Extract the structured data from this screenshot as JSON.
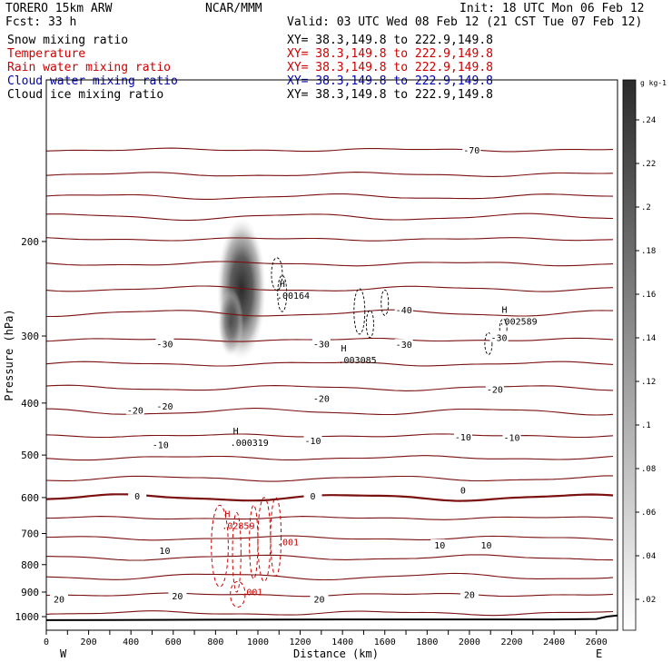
{
  "header": {
    "model": "TORERO  15km ARW",
    "org": "NCAR/MMM",
    "init": "Init: 18 UTC Mon 06 Feb 12",
    "fcst": "Fcst:   33 h",
    "valid": "Valid: 03 UTC Wed 08 Feb 12 (21 CST Tue 07 Feb 12)"
  },
  "fields": [
    {
      "label": "Snow mixing ratio",
      "xy": "XY=  38.3,149.8 to 222.9,149.8",
      "color": "#000000"
    },
    {
      "label": "Temperature",
      "xy": "XY=  38.3,149.8 to 222.9,149.8",
      "color": "#cc0000"
    },
    {
      "label": "Rain water mixing ratio",
      "xy": "XY=  38.3,149.8 to 222.9,149.8",
      "color": "#cc0000"
    },
    {
      "label": "Cloud water mixing ratio",
      "xy": "XY=  38.3,149.8 to 222.9,149.8",
      "color": "#0000aa"
    },
    {
      "label": "Cloud ice mixing ratio",
      "xy": "XY=  38.3,149.8 to 222.9,149.8",
      "color": "#000000"
    }
  ],
  "colors": {
    "temperature": "#7b1010",
    "freezing": "#7b1010",
    "rain": "#cc0000",
    "ice": "#000000",
    "terrain": "#000000"
  },
  "chart_data": {
    "type": "line",
    "xlabel": "Distance (km)",
    "ylabel": "Pressure (hPa)",
    "xlim": [
      0,
      2700
    ],
    "ylim": [
      1060,
      100
    ],
    "y_scale": "log",
    "x_ticks": [
      0,
      100,
      200,
      300,
      400,
      500,
      600,
      700,
      800,
      900,
      1000,
      1100,
      1200,
      1300,
      1400,
      1500,
      1600,
      1700,
      1800,
      1900,
      2000,
      2100,
      2200,
      2300,
      2400,
      2500,
      2600
    ],
    "x_tick_labels": [
      "0",
      "",
      "200",
      "",
      "400",
      "",
      "600",
      "",
      "800",
      "",
      "1000",
      "",
      "1200",
      "",
      "1400",
      "",
      "1600",
      "",
      "1800",
      "",
      "2000",
      "",
      "2200",
      "",
      "2400",
      "",
      "2600"
    ],
    "y_ticks": [
      200,
      300,
      400,
      500,
      600,
      700,
      800,
      900,
      1000
    ],
    "x_end_labels": {
      "left": "W",
      "right": "E"
    },
    "isotherm_labels": [
      {
        "text": "-70",
        "x": 2010,
        "p": 135
      },
      {
        "text": "-40",
        "x": 1690,
        "p": 268
      },
      {
        "text": "-30",
        "x": 560,
        "p": 310
      },
      {
        "text": "-30",
        "x": 1300,
        "p": 310
      },
      {
        "text": "-30",
        "x": 1690,
        "p": 311
      },
      {
        "text": "-30",
        "x": 2140,
        "p": 302
      },
      {
        "text": "-20",
        "x": 420,
        "p": 412
      },
      {
        "text": "-20",
        "x": 560,
        "p": 405
      },
      {
        "text": "-20",
        "x": 1300,
        "p": 392
      },
      {
        "text": "-20",
        "x": 2120,
        "p": 377
      },
      {
        "text": "-10",
        "x": 540,
        "p": 478
      },
      {
        "text": "-10",
        "x": 1260,
        "p": 470
      },
      {
        "text": "-10",
        "x": 1970,
        "p": 462
      },
      {
        "text": "-10",
        "x": 2200,
        "p": 463
      },
      {
        "text": "0",
        "x": 430,
        "p": 595
      },
      {
        "text": "0",
        "x": 1260,
        "p": 595
      },
      {
        "text": "0",
        "x": 1970,
        "p": 581
      },
      {
        "text": "10",
        "x": 560,
        "p": 753
      },
      {
        "text": "10",
        "x": 1860,
        "p": 735
      },
      {
        "text": "10",
        "x": 2080,
        "p": 735
      },
      {
        "text": "20",
        "x": 60,
        "p": 926
      },
      {
        "text": "20",
        "x": 620,
        "p": 914
      },
      {
        "text": "20",
        "x": 1290,
        "p": 926
      },
      {
        "text": "20",
        "x": 2000,
        "p": 909
      }
    ],
    "isotherm_levels": [
      135,
      150,
      165,
      180,
      198,
      220,
      245,
      272,
      305,
      338,
      375,
      415,
      460,
      506,
      553,
      600,
      655,
      714,
      776,
      842,
      910,
      985
    ],
    "maxima": [
      {
        "marker": "H",
        "value": ".00164",
        "x": 1090,
        "p": 246
      },
      {
        "marker": "H",
        "value": ".003085",
        "x": 1380,
        "p": 324
      },
      {
        "marker": "H",
        "value": ".002589",
        "x": 2140,
        "p": 275
      },
      {
        "marker": "H",
        "value": ".000319",
        "x": 870,
        "p": 462
      },
      {
        "marker": "H",
        "value": ".02859",
        "x": 830,
        "p": 660
      }
    ],
    "rain_labels": [
      {
        "text": ".001",
        "x": 1090,
        "p": 725
      },
      {
        "text": ".001",
        "x": 920,
        "p": 898
      }
    ],
    "colorbar": {
      "unit": "g kg-1",
      "ticks": [
        ".24",
        ".22",
        ".2",
        ".18",
        ".16",
        ".14",
        ".12",
        ".1",
        ".08",
        ".06",
        ".04",
        ".02"
      ]
    }
  }
}
